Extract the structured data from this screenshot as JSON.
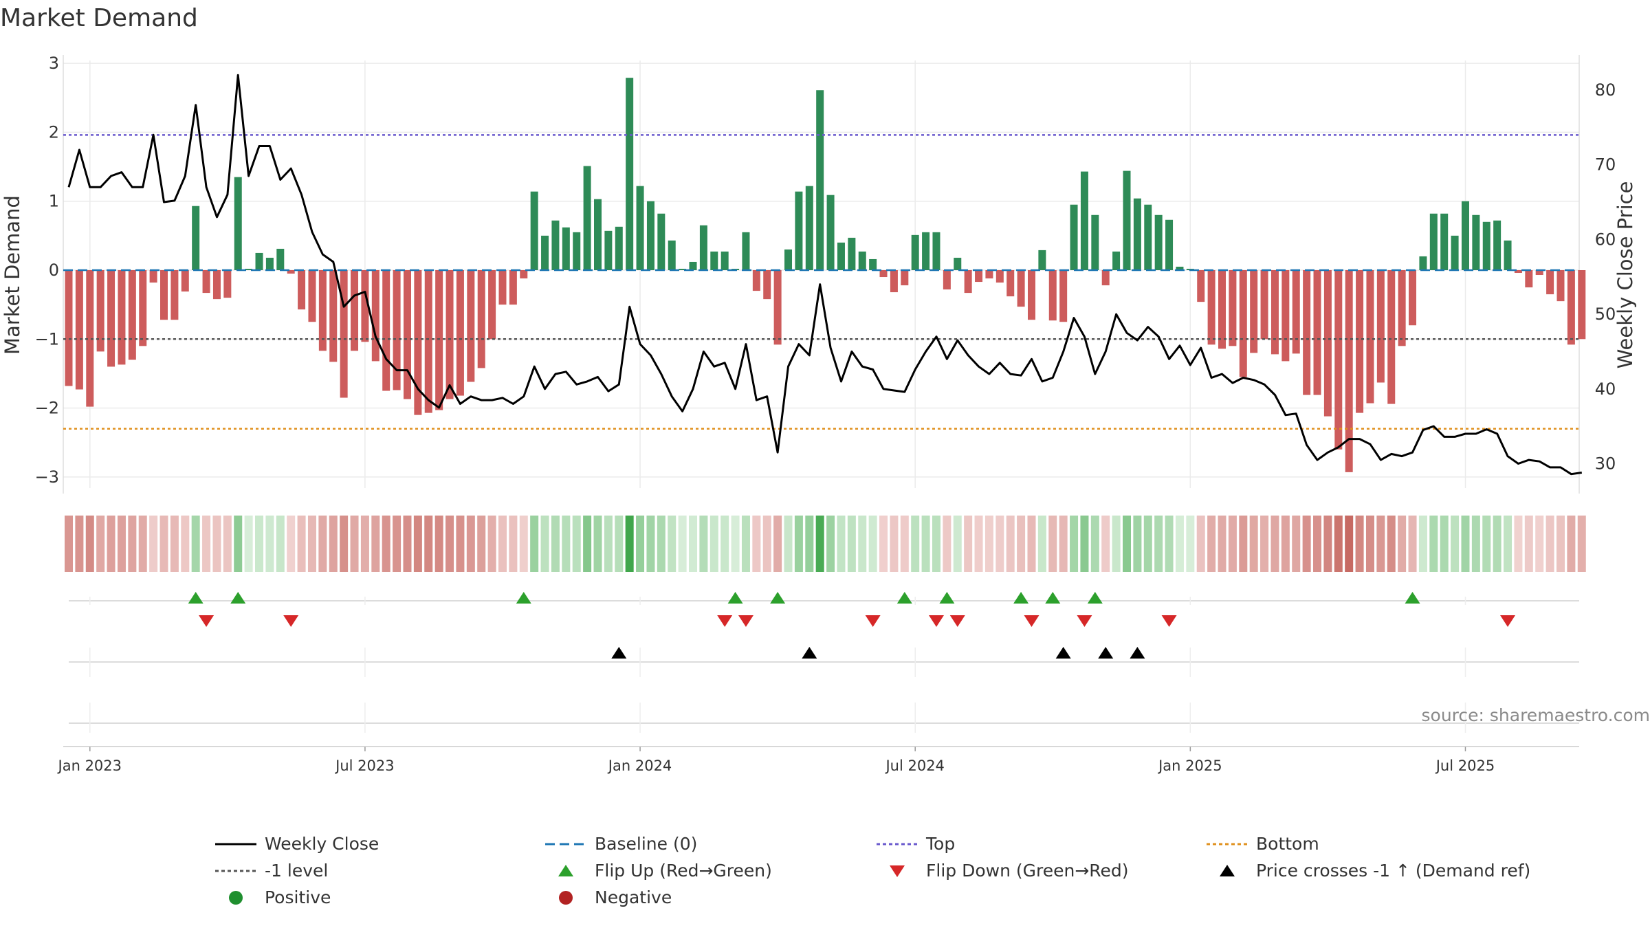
{
  "chart_data": {
    "type": "bar",
    "title": "Market Demand",
    "ylabel": "Market Demand",
    "y2label": "Weekly Close Price",
    "ylim": [
      -3.2,
      3.1
    ],
    "y2lim": [
      26.5,
      84.5
    ],
    "yticks": [
      3,
      2,
      1,
      0,
      -1,
      -2,
      -3
    ],
    "yticks_labels": [
      "3",
      "2",
      "1",
      "0",
      "−1",
      "−2",
      "−3"
    ],
    "y2ticks": [
      80,
      70,
      60,
      50,
      40,
      30
    ],
    "y2ticks_labels": [
      "80",
      "70",
      "60",
      "50",
      "40",
      "30"
    ],
    "reference_lines": {
      "top": 1.96,
      "bottom": -2.3,
      "minus_one": -1,
      "baseline": 0
    },
    "xticks": [
      {
        "week": 2,
        "label": "Jan 2023"
      },
      {
        "week": 28,
        "label": "Jul 2023"
      },
      {
        "week": 54,
        "label": "Jan 2024"
      },
      {
        "week": 80,
        "label": "Jul 2024"
      },
      {
        "week": 106,
        "label": "Jan 2025"
      },
      {
        "week": 132,
        "label": "Jul 2025"
      }
    ],
    "demand": [
      -1.68,
      -1.73,
      -1.98,
      -1.18,
      -1.4,
      -1.37,
      -1.3,
      -1.1,
      -0.18,
      -0.72,
      -0.72,
      -0.31,
      0.93,
      -0.33,
      -0.42,
      -0.4,
      1.35,
      0.02,
      0.25,
      0.18,
      0.31,
      -0.05,
      -0.57,
      -0.75,
      -1.17,
      -1.33,
      -1.85,
      -1.17,
      -1.04,
      -1.32,
      -1.75,
      -1.74,
      -1.87,
      -2.1,
      -2.07,
      -2.03,
      -1.87,
      -1.82,
      -1.62,
      -1.42,
      -1.0,
      -0.5,
      -0.5,
      -0.12,
      1.14,
      0.5,
      0.72,
      0.62,
      0.55,
      1.51,
      1.03,
      0.57,
      0.63,
      2.79,
      1.22,
      1.0,
      0.82,
      0.43,
      0.02,
      0.12,
      0.65,
      0.27,
      0.27,
      0.02,
      0.55,
      -0.3,
      -0.42,
      -1.08,
      0.3,
      1.14,
      1.22,
      2.61,
      1.09,
      0.4,
      0.47,
      0.27,
      0.16,
      -0.1,
      -0.32,
      -0.22,
      0.51,
      0.55,
      0.55,
      -0.28,
      0.18,
      -0.33,
      -0.17,
      -0.12,
      -0.18,
      -0.38,
      -0.53,
      -0.72,
      0.29,
      -0.73,
      -0.75,
      0.95,
      1.43,
      0.8,
      -0.22,
      0.27,
      1.44,
      1.04,
      0.95,
      0.8,
      0.73,
      0.05,
      0.02,
      -0.46,
      -1.08,
      -1.14,
      -1.1,
      -1.55,
      -1.2,
      -1.0,
      -1.22,
      -1.32,
      -1.21,
      -1.81,
      -1.81,
      -2.12,
      -2.6,
      -2.93,
      -2.07,
      -1.93,
      -1.63,
      -1.94,
      -1.1,
      -0.8,
      0.2,
      0.82,
      0.82,
      0.5,
      1.0,
      0.8,
      0.7,
      0.72,
      0.43,
      -0.04,
      -0.25,
      -0.07,
      -0.35,
      -0.45,
      -1.08,
      -1.0
    ],
    "weekly_close": [
      67.0,
      72.0,
      67.0,
      67.0,
      68.5,
      69.0,
      67.0,
      67.0,
      74.0,
      65.0,
      65.2,
      68.5,
      78.0,
      67.0,
      63.0,
      66.0,
      82.0,
      68.5,
      72.5,
      72.5,
      68.0,
      69.5,
      66.0,
      61.0,
      58.0,
      57.0,
      51.0,
      52.5,
      53.0,
      47.0,
      44.0,
      42.5,
      42.5,
      40.0,
      38.5,
      37.5,
      40.5,
      38.0,
      39.0,
      38.5,
      38.5,
      38.8,
      38.0,
      39.0,
      43.0,
      40.0,
      42.0,
      42.3,
      40.6,
      41.0,
      41.6,
      39.7,
      40.6,
      51.0,
      46.0,
      44.5,
      42.0,
      39.0,
      37.0,
      40.0,
      45.0,
      43.0,
      43.5,
      40.0,
      46.0,
      38.5,
      39.0,
      31.5,
      43.0,
      46.0,
      44.5,
      54.0,
      45.5,
      41.0,
      45.0,
      43.0,
      42.6,
      40.0,
      39.8,
      39.6,
      42.6,
      45.0,
      47.0,
      44.0,
      46.5,
      44.5,
      43.0,
      42.0,
      43.5,
      42.0,
      41.8,
      44.0,
      41.0,
      41.5,
      45.0,
      49.5,
      47.0,
      42.0,
      45.0,
      50.0,
      47.5,
      46.5,
      48.3,
      47.0,
      44.0,
      45.8,
      43.2,
      45.5,
      41.5,
      42.0,
      40.8,
      41.5,
      41.2,
      40.6,
      39.2,
      36.5,
      36.7,
      32.5,
      30.5,
      31.5,
      32.2,
      33.3,
      33.3,
      32.6,
      30.5,
      31.3,
      31.0,
      31.5,
      34.5,
      35.0,
      33.6,
      33.6,
      34.0,
      34.0,
      34.6,
      34.0,
      31.0,
      30.0,
      30.5,
      30.3,
      29.5,
      29.5,
      28.6,
      28.8
    ],
    "flip_up_weeks": [
      12,
      16,
      43,
      63,
      67,
      79,
      83,
      90,
      93,
      97,
      127
    ],
    "flip_down_weeks": [
      13,
      21,
      62,
      64,
      76,
      82,
      84,
      91,
      96,
      104,
      136
    ],
    "price_cross_weeks": [
      52,
      70,
      94,
      98,
      101
    ],
    "source": "source: sharemaestro.com",
    "legend": [
      {
        "label": "Weekly Close",
        "symbol": "line",
        "color": "#000000",
        "dash": "solid"
      },
      {
        "label": "Baseline (0)",
        "symbol": "line",
        "color": "#1f77b4",
        "dash": "long"
      },
      {
        "label": "Top",
        "symbol": "line",
        "color": "#6a5acd",
        "dash": "dot"
      },
      {
        "label": "Bottom",
        "symbol": "line",
        "color": "#e0911f",
        "dash": "dot"
      },
      {
        "label": "-1 level",
        "symbol": "line",
        "color": "#555555",
        "dash": "dot"
      },
      {
        "label": "Flip Up (Red→Green)",
        "symbol": "tri-up",
        "color": "#2ca02c"
      },
      {
        "label": "Flip Down (Green→Red)",
        "symbol": "tri-down",
        "color": "#d62728"
      },
      {
        "label": "Price crosses -1 ↑ (Demand ref)",
        "symbol": "tri-up",
        "color": "#000000"
      },
      {
        "label": "Positive",
        "symbol": "dot",
        "color": "#1f8f2f"
      },
      {
        "label": "Negative",
        "symbol": "dot",
        "color": "#b22222"
      }
    ],
    "colors": {
      "positive_bar": "#2e8b57",
      "negative_bar": "#cd5c5c",
      "top": "#6a5acd",
      "bottom": "#e0911f",
      "minus_one": "#555555",
      "baseline": "#1f77b4",
      "close": "#000000"
    }
  }
}
